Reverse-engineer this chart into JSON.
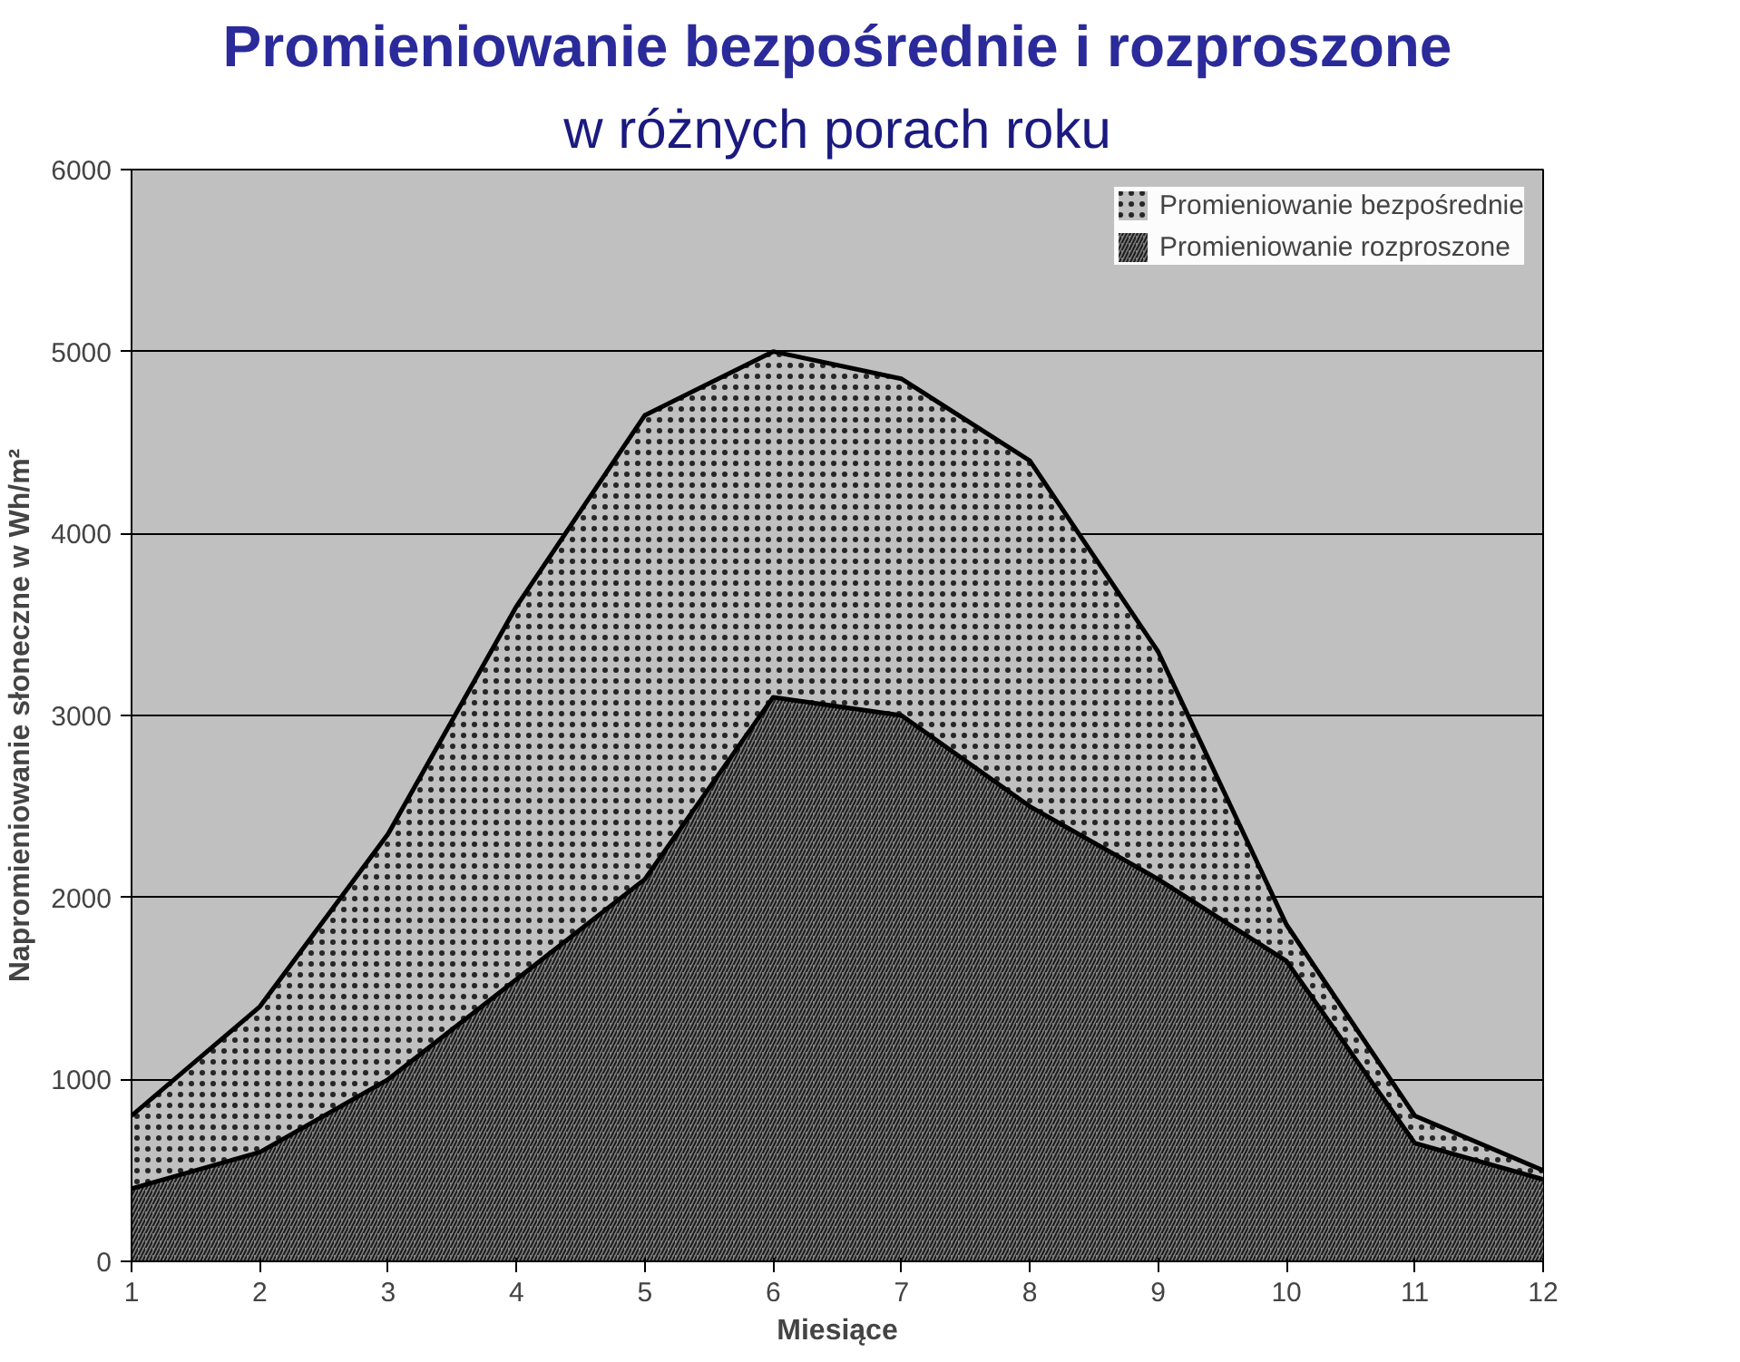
{
  "chart_data": {
    "type": "area",
    "title": "Promieniowanie bezpośrednie i rozproszone",
    "subtitle": "w różnych porach roku",
    "xlabel": "Miesiące",
    "ylabel": "Napromieniowanie słoneczne w Wh/m²",
    "x": [
      1,
      2,
      3,
      4,
      5,
      6,
      7,
      8,
      9,
      10,
      11,
      12
    ],
    "series": [
      {
        "name": "Promieniowanie bezpośrednie",
        "color": "#c0c0c0",
        "values": [
          800,
          1400,
          2350,
          3600,
          4650,
          5000,
          4850,
          4400,
          3350,
          1850,
          800,
          500
        ]
      },
      {
        "name": "Promieniowanie rozproszone",
        "color": "#808080",
        "values": [
          400,
          600,
          1000,
          1550,
          2100,
          3100,
          3000,
          2500,
          2100,
          1650,
          650,
          450
        ]
      }
    ],
    "xlim": [
      1,
      12
    ],
    "xticks": [
      1,
      2,
      3,
      4,
      5,
      6,
      7,
      8,
      9,
      10,
      11,
      12
    ],
    "ylim": [
      0,
      6000
    ],
    "yticks": [
      0,
      1000,
      2000,
      3000,
      4000,
      5000,
      6000
    ],
    "grid": "y",
    "legend": "top right"
  }
}
